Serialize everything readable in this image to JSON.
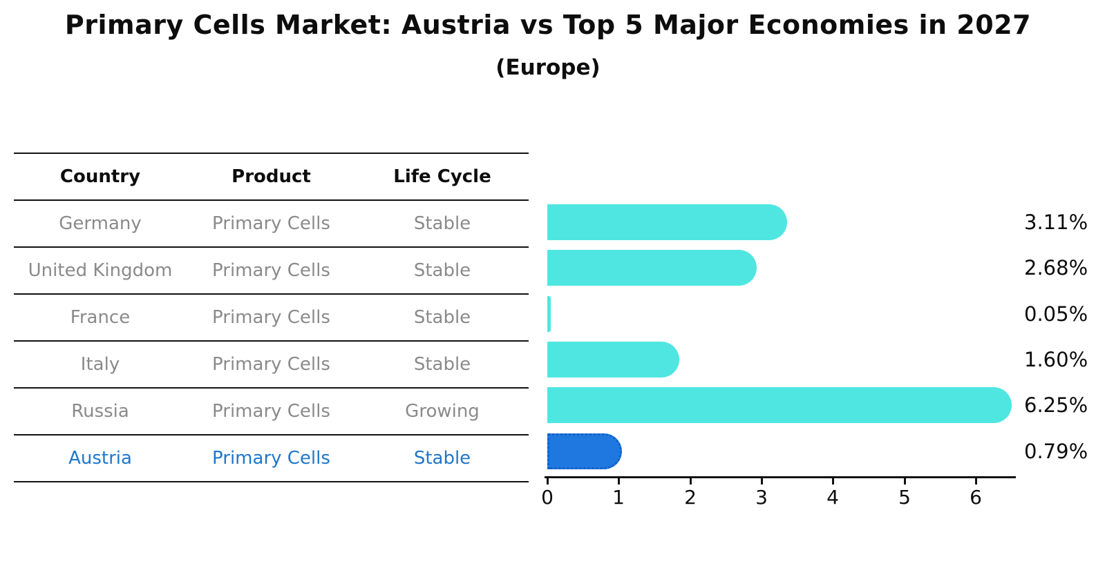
{
  "title": "Primary Cells Market: Austria vs Top 5 Major Economies in 2027",
  "subtitle": "(Europe)",
  "table": {
    "headers": [
      "Country",
      "Product",
      "Life Cycle"
    ],
    "rows": [
      {
        "country": "Germany",
        "product": "Primary Cells",
        "life_cycle": "Stable",
        "highlight": false
      },
      {
        "country": "United Kingdom",
        "product": "Primary Cells",
        "life_cycle": "Stable",
        "highlight": false
      },
      {
        "country": "France",
        "product": "Primary Cells",
        "life_cycle": "Stable",
        "highlight": false
      },
      {
        "country": "Italy",
        "product": "Primary Cells",
        "life_cycle": "Stable",
        "highlight": false
      },
      {
        "country": "Russia",
        "product": "Primary Cells",
        "life_cycle": "Growing",
        "highlight": false
      },
      {
        "country": "Austria",
        "product": "Primary Cells",
        "life_cycle": "Stable",
        "highlight": true
      }
    ]
  },
  "chart_data": {
    "type": "bar",
    "orientation": "horizontal",
    "title": "Primary Cells Market: Austria vs Top 5 Major Economies in 2027",
    "subtitle": "(Europe)",
    "categories": [
      "Germany",
      "United Kingdom",
      "France",
      "Italy",
      "Russia",
      "Austria"
    ],
    "values": [
      3.11,
      2.68,
      0.05,
      1.6,
      6.25,
      0.79
    ],
    "value_labels": [
      "3.11%",
      "2.68%",
      "0.05%",
      "1.60%",
      "6.25%",
      "0.79%"
    ],
    "xlabel": "",
    "ylabel": "",
    "xlim": [
      0,
      6.6
    ],
    "x_ticks": [
      "0",
      "1",
      "2",
      "3",
      "4",
      "5",
      "6"
    ],
    "grid": false,
    "legend": false,
    "highlight_index": 5,
    "bar_color": "#4FE6E1",
    "highlight_bar_color": "#1E78E0",
    "highlight_text_color": "#1f77c8",
    "text_color": "#0d0d0d",
    "muted_text_color": "#8a8a8a"
  }
}
